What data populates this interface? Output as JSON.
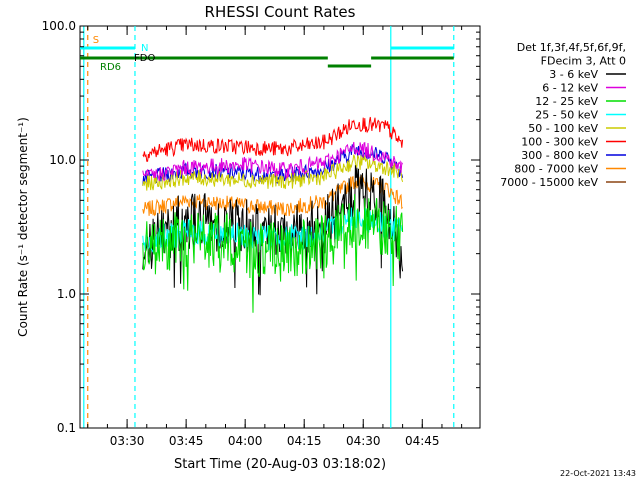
{
  "chart_data": {
    "type": "line",
    "title": "RHESSI Count Rates",
    "xlabel": "Start Time (20-Aug-03 03:18:02)",
    "ylabel": "Count Rate (s⁻¹ detector segment⁻¹)",
    "yscale": "log",
    "ylim": [
      0.1,
      100
    ],
    "xlim": [
      "03:18:02",
      "04:59:40"
    ],
    "grid": false,
    "x_ticks": [
      "03:30",
      "03:45",
      "04:00",
      "04:15",
      "04:30",
      "04:45"
    ],
    "y_ticks": [
      "0.1",
      "1.0",
      "10.0",
      "100.0"
    ],
    "legend_placement": "right",
    "legend_header": [
      "Det 1f,3f,4f,5f,6f,9f,",
      "FDecim 3, Att 0"
    ],
    "footer_date": "22-Oct-2021 13:43",
    "series": [
      {
        "name": "3 - 6 keV",
        "color": "#000000",
        "x": [
          "03:34",
          "03:45",
          "04:00",
          "04:10",
          "04:20",
          "04:28",
          "04:36",
          "04:40"
        ],
        "y": [
          2.3,
          3.6,
          3.3,
          3.0,
          3.2,
          5.5,
          4.8,
          1.6
        ]
      },
      {
        "name": "6 - 12 keV",
        "color": "#dd00dd",
        "x": [
          "03:34",
          "03:45",
          "04:00",
          "04:10",
          "04:20",
          "04:28",
          "04:36",
          "04:40"
        ],
        "y": [
          7.3,
          8.8,
          9.2,
          8.4,
          9.5,
          12.5,
          10.5,
          8.5
        ]
      },
      {
        "name": "12 - 25 keV",
        "color": "#00dd00",
        "x": [
          "03:34",
          "03:45",
          "04:00",
          "04:10",
          "04:20",
          "04:28",
          "04:36",
          "04:40"
        ],
        "y": [
          2.1,
          2.6,
          2.3,
          2.0,
          2.4,
          3.7,
          3.0,
          2.6
        ]
      },
      {
        "name": "25 - 50 keV",
        "color": "#00ffff",
        "x": [
          "03:34",
          "03:45",
          "04:00",
          "04:10",
          "04:20",
          "04:28",
          "04:36",
          "04:40"
        ],
        "y": [
          2.4,
          2.9,
          2.7,
          2.6,
          2.8,
          3.9,
          3.2,
          2.9
        ]
      },
      {
        "name": "50 - 100 keV",
        "color": "#cccc00",
        "x": [
          "03:34",
          "03:45",
          "04:00",
          "04:10",
          "04:20",
          "04:28",
          "04:36",
          "04:40"
        ],
        "y": [
          6.6,
          7.4,
          7.1,
          6.9,
          7.5,
          9.8,
          8.8,
          7.8
        ]
      },
      {
        "name": "100 - 300 keV",
        "color": "#ff0000",
        "x": [
          "03:34",
          "03:45",
          "04:00",
          "04:10",
          "04:20",
          "04:28",
          "04:36",
          "04:40"
        ],
        "y": [
          11.0,
          13.0,
          12.5,
          12.0,
          13.5,
          19.0,
          17.5,
          13.0
        ]
      },
      {
        "name": "300 - 800 keV",
        "color": "#0000dd",
        "x": [
          "03:34",
          "03:45",
          "04:00",
          "04:10",
          "04:20",
          "04:28",
          "04:36",
          "04:40"
        ],
        "y": [
          7.2,
          8.3,
          8.0,
          7.6,
          8.6,
          12.0,
          10.5,
          8.0
        ]
      },
      {
        "name": "800 - 7000 keV",
        "color": "#ff8800",
        "x": [
          "03:34",
          "03:45",
          "04:00",
          "04:10",
          "04:20",
          "04:28",
          "04:36",
          "04:40"
        ],
        "y": [
          4.2,
          5.0,
          4.6,
          4.3,
          4.9,
          7.0,
          6.2,
          4.8
        ]
      },
      {
        "name": "7000 - 15000 keV",
        "color": "#8b4513",
        "x": [
          "03:34",
          "03:45",
          "04:00",
          "04:10",
          "04:20",
          "04:28",
          "04:36",
          "04:40"
        ],
        "y": [
          4.1,
          4.8,
          4.4,
          4.2,
          4.8,
          6.8,
          6.0,
          4.6
        ]
      }
    ],
    "status_bars": [
      {
        "label": "RD6",
        "color": "#008000",
        "segments": [
          [
            "03:18:02",
            "04:21"
          ],
          [
            "04:32",
            "04:53"
          ]
        ]
      },
      {
        "label": "",
        "color": "#008000",
        "segments": [
          [
            "04:21",
            "04:32"
          ]
        ]
      },
      {
        "label": "N",
        "color": "#00ffff",
        "segments": [
          [
            "03:18:02",
            "03:32"
          ],
          [
            "04:37",
            "04:53"
          ]
        ]
      },
      {
        "label": "FDO",
        "color": "#000000",
        "segments": []
      }
    ],
    "vertical_markers": [
      {
        "x": "03:19",
        "color": "#00ffff",
        "style": "solid"
      },
      {
        "x": "03:20",
        "color": "#ff8800",
        "style": "dashed",
        "label": "S"
      },
      {
        "x": "03:32",
        "color": "#00ffff",
        "style": "dashed"
      },
      {
        "x": "04:37",
        "color": "#00ffff",
        "style": "solid"
      },
      {
        "x": "04:53",
        "color": "#00ffff",
        "style": "dashed"
      }
    ]
  }
}
